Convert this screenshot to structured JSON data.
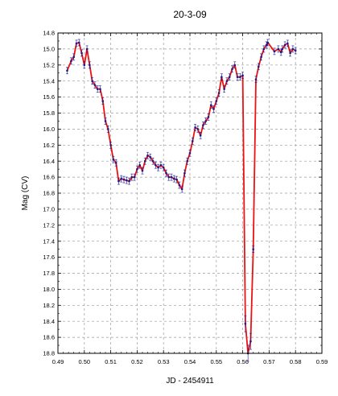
{
  "chart_data": {
    "type": "line",
    "title": "20-3-09",
    "xlabel": "JD - 2454911",
    "ylabel": "Mag (CV)",
    "xlim": [
      0.49,
      0.59
    ],
    "ylim": [
      14.8,
      18.8
    ],
    "y_inverted": true,
    "grid": true,
    "x_ticks": [
      "0.49",
      "0.50",
      "0.51",
      "0.52",
      "0.53",
      "0.54",
      "0.55",
      "0.56",
      "0.57",
      "0.58",
      "0.59"
    ],
    "y_ticks": [
      "14.8",
      "15.0",
      "15.2",
      "15.4",
      "15.6",
      "15.8",
      "16.0",
      "16.2",
      "16.4",
      "16.6",
      "16.8",
      "17.0",
      "17.2",
      "17.4",
      "17.6",
      "17.8",
      "18.0",
      "18.2",
      "18.4",
      "18.6",
      "18.8"
    ],
    "colors": {
      "line": "#ee1111",
      "points": "#1a1a8c"
    },
    "series": [
      {
        "x": [
          0.4935,
          0.495,
          0.496,
          0.497,
          0.498,
          0.499,
          0.5,
          0.501,
          0.502,
          0.503,
          0.504,
          0.505,
          0.506,
          0.507,
          0.508,
          0.509,
          0.51,
          0.511,
          0.512,
          0.513,
          0.514,
          0.515,
          0.516,
          0.517,
          0.518,
          0.519,
          0.52,
          0.521,
          0.522,
          0.523,
          0.524,
          0.525,
          0.526,
          0.527,
          0.528,
          0.529,
          0.53,
          0.531,
          0.532,
          0.533,
          0.534,
          0.535,
          0.536,
          0.537,
          0.538,
          0.539,
          0.54,
          0.541,
          0.542,
          0.543,
          0.544,
          0.545,
          0.546,
          0.547,
          0.548,
          0.549,
          0.55,
          0.551,
          0.552,
          0.553,
          0.554,
          0.555,
          0.556,
          0.557,
          0.558,
          0.559,
          0.56,
          0.561,
          0.562,
          0.563,
          0.564,
          0.565,
          0.566,
          0.567,
          0.568,
          0.569,
          0.5695,
          0.572,
          0.5735,
          0.5745,
          0.575,
          0.576,
          0.577,
          0.578,
          0.579,
          0.58
        ],
        "y": [
          15.27,
          15.15,
          15.1,
          14.93,
          14.92,
          15.05,
          15.2,
          15.0,
          15.2,
          15.4,
          15.45,
          15.5,
          15.5,
          15.65,
          15.9,
          16.0,
          16.2,
          16.38,
          16.42,
          16.65,
          16.62,
          16.63,
          16.64,
          16.65,
          16.6,
          16.6,
          16.5,
          16.45,
          16.52,
          16.4,
          16.33,
          16.35,
          16.4,
          16.45,
          16.48,
          16.45,
          16.48,
          16.55,
          16.6,
          16.6,
          16.62,
          16.63,
          16.7,
          16.75,
          16.55,
          16.4,
          16.3,
          16.15,
          15.98,
          16.0,
          16.08,
          15.95,
          15.9,
          15.85,
          15.7,
          15.75,
          15.65,
          15.55,
          15.35,
          15.5,
          15.4,
          15.35,
          15.25,
          15.2,
          15.35,
          15.35,
          15.33,
          18.43,
          18.8,
          18.65,
          17.5,
          15.38,
          15.22,
          15.1,
          15.0,
          14.95,
          14.92,
          15.03,
          15.0,
          15.04,
          15.0,
          14.95,
          14.93,
          15.05,
          15.0,
          15.02
        ]
      }
    ]
  }
}
